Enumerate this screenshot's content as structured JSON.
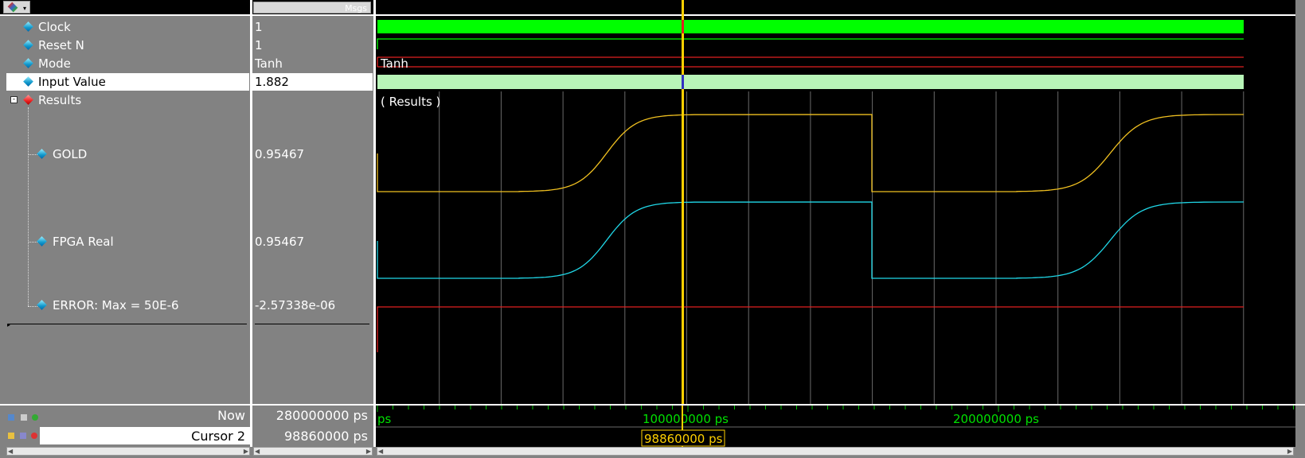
{
  "header": {
    "msgs_label": "Msgs"
  },
  "signals": [
    {
      "name": "Clock",
      "value": "1"
    },
    {
      "name": "Reset N",
      "value": "1"
    },
    {
      "name": "Mode",
      "value": "Tanh",
      "wave_label": "Tanh"
    },
    {
      "name": "Input Value",
      "value": "1.882"
    },
    {
      "name": "Results",
      "value": "",
      "wave_label": "( Results )"
    },
    {
      "name": "GOLD",
      "value": "0.95467"
    },
    {
      "name": "FPGA Real",
      "value": "0.95467"
    },
    {
      "name": "ERROR: Max = 50E-6",
      "value": "-2.57338e-06"
    }
  ],
  "status": {
    "now_label": "Now",
    "now_value": "280000000 ps",
    "cursor_label": "Cursor 2",
    "cursor_value": "98860000 ps",
    "cursor_flag": "98860000 ps"
  },
  "timeline": {
    "start_label": "ps",
    "tick1_label": "100000000 ps",
    "tick2_label": "200000000 ps"
  },
  "colors": {
    "clock": "#00ff00",
    "input": "#b8f5b8",
    "bus_red": "#e02020",
    "gold": "#f0c020",
    "fpga": "#20d8e8",
    "cursor": "#ffd000",
    "grid": "#6a6a6a"
  },
  "icons": [
    "wave-tool-icon",
    "signal-diamond-icon",
    "expand-collapse-icon",
    "lock-icon",
    "add-cursor-icon",
    "delete-cursor-icon"
  ]
}
